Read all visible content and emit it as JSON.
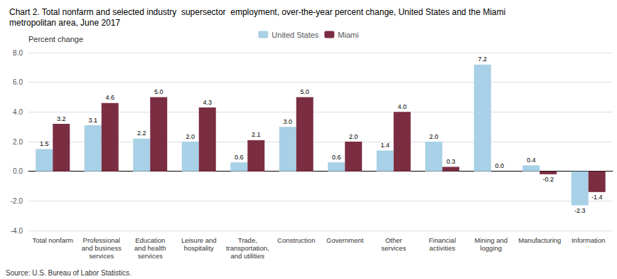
{
  "chart_data": {
    "type": "bar",
    "title": "Chart 2. Total nonfarm and selected industry  supersector  employment, over-the-year percent change, United States and the Miami\nmetropolitan area, June 2017",
    "ylabel": "Percent change",
    "annotations": [
      "Source: U.S. Bureau of Labor Statistics."
    ],
    "categories": [
      "Total nonfarm",
      "Professional\nand business\nservices",
      "Education\nand health\nservices",
      "Leisure and\nhospitality",
      "Trade,\ntransportation,\nand utilities",
      "Construction",
      "Government",
      "Other\nservices",
      "Financial\nactivities",
      "Mining and\nlogging",
      "Manufacturing",
      "Information"
    ],
    "series": [
      {
        "name": "United States",
        "color": "#a8d0e6",
        "values": [
          1.5,
          3.1,
          2.2,
          2.0,
          0.6,
          3.0,
          0.6,
          1.4,
          2.0,
          7.2,
          0.4,
          -2.3
        ],
        "value_labels": [
          "1.5",
          "3.1",
          "2.2",
          "2.0",
          "0.6",
          "3.0",
          "0.6",
          "1.4",
          "2.0",
          "7.2",
          "0.4",
          "-2.3"
        ]
      },
      {
        "name": "Miami",
        "color": "#7b2d42",
        "values": [
          3.2,
          4.6,
          5.0,
          4.3,
          2.1,
          5.0,
          2.0,
          4.0,
          0.3,
          0.0,
          -0.2,
          -1.4
        ],
        "value_labels": [
          "3.2",
          "4.6",
          "5.0",
          "4.3",
          "2.1",
          "5.0",
          "2.0",
          "4.0",
          "0.3",
          "0.0",
          "-0.2",
          "-1.4"
        ]
      }
    ],
    "ylim": [
      -4.0,
      8.0
    ],
    "yticks": [
      {
        "value": -4.0,
        "label": "-4.0"
      },
      {
        "value": -2.0,
        "label": "-2.0"
      },
      {
        "value": 0.0,
        "label": "0.0"
      },
      {
        "value": 2.0,
        "label": "2.0"
      },
      {
        "value": 4.0,
        "label": "4.0"
      },
      {
        "value": 6.0,
        "label": "6.0"
      },
      {
        "value": 8.0,
        "label": "8.0"
      }
    ],
    "grid": true,
    "legend": "upper center",
    "data_labels": true
  }
}
